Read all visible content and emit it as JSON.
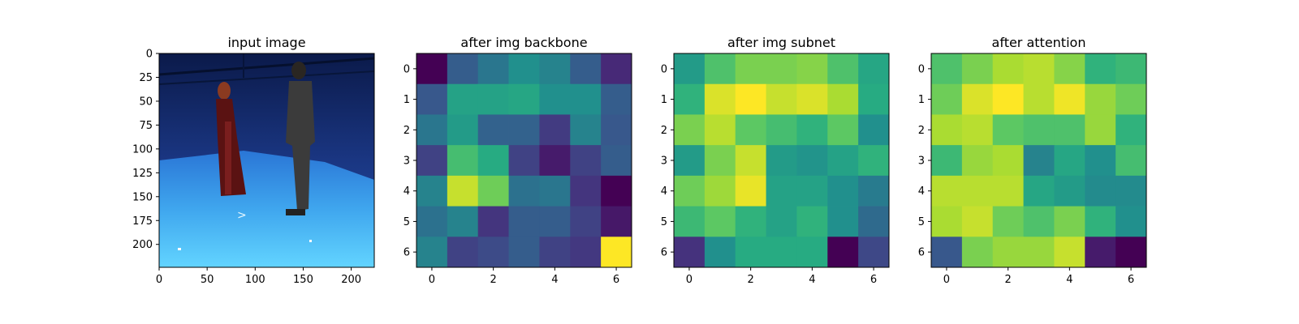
{
  "chart_data": [
    {
      "type": "image",
      "title": "input image",
      "xticks": [
        "0",
        "50",
        "100",
        "150",
        "200"
      ],
      "yticks": [
        "0",
        "25",
        "50",
        "75",
        "100",
        "125",
        "150",
        "175",
        "200"
      ],
      "xlim": [
        0,
        224
      ],
      "ylim": [
        224,
        0
      ],
      "colors": {
        "wall_top": "#0b1a4a",
        "wall_mid": "#1c3a88",
        "floor_far": "#2a77d6",
        "floor_near": "#5fd0ff",
        "person_left_dress": "#6b1515",
        "person_right_clothes": "#3b3b3b"
      }
    },
    {
      "type": "heatmap",
      "title": "after img backbone",
      "xticks": [
        "0",
        "2",
        "4",
        "6"
      ],
      "yticks": [
        "0",
        "1",
        "2",
        "3",
        "4",
        "5",
        "6"
      ],
      "colormap": "viridis",
      "matrix": [
        [
          0.0,
          0.3,
          0.4,
          0.5,
          0.45,
          0.3,
          0.12
        ],
        [
          0.28,
          0.58,
          0.58,
          0.6,
          0.5,
          0.5,
          0.3
        ],
        [
          0.4,
          0.55,
          0.32,
          0.32,
          0.18,
          0.45,
          0.28
        ],
        [
          0.2,
          0.7,
          0.62,
          0.2,
          0.08,
          0.2,
          0.3
        ],
        [
          0.45,
          0.92,
          0.78,
          0.38,
          0.4,
          0.16,
          0.0
        ],
        [
          0.38,
          0.45,
          0.16,
          0.3,
          0.3,
          0.2,
          0.07
        ],
        [
          0.45,
          0.2,
          0.23,
          0.3,
          0.2,
          0.17,
          1.0
        ]
      ]
    },
    {
      "type": "heatmap",
      "title": "after img subnet",
      "xticks": [
        "0",
        "2",
        "4",
        "6"
      ],
      "yticks": [
        "0",
        "1",
        "2",
        "3",
        "4",
        "5",
        "6"
      ],
      "colormap": "viridis",
      "matrix": [
        [
          0.55,
          0.72,
          0.8,
          0.8,
          0.82,
          0.72,
          0.6
        ],
        [
          0.65,
          0.95,
          1.0,
          0.92,
          0.95,
          0.88,
          0.62
        ],
        [
          0.8,
          0.9,
          0.75,
          0.7,
          0.65,
          0.75,
          0.5
        ],
        [
          0.55,
          0.8,
          0.92,
          0.55,
          0.52,
          0.58,
          0.65
        ],
        [
          0.78,
          0.86,
          0.97,
          0.58,
          0.58,
          0.5,
          0.42
        ],
        [
          0.68,
          0.75,
          0.65,
          0.58,
          0.65,
          0.5,
          0.35
        ],
        [
          0.15,
          0.5,
          0.62,
          0.62,
          0.62,
          0.0,
          0.22
        ]
      ]
    },
    {
      "type": "heatmap",
      "title": "after attention",
      "xticks": [
        "0",
        "2",
        "4",
        "6"
      ],
      "yticks": [
        "0",
        "1",
        "2",
        "3",
        "4",
        "5",
        "6"
      ],
      "colormap": "viridis",
      "matrix": [
        [
          0.72,
          0.8,
          0.88,
          0.9,
          0.82,
          0.65,
          0.68
        ],
        [
          0.78,
          0.95,
          1.0,
          0.9,
          0.98,
          0.85,
          0.78
        ],
        [
          0.88,
          0.9,
          0.75,
          0.72,
          0.72,
          0.85,
          0.65
        ],
        [
          0.68,
          0.85,
          0.88,
          0.45,
          0.6,
          0.5,
          0.7
        ],
        [
          0.9,
          0.9,
          0.9,
          0.6,
          0.55,
          0.48,
          0.48
        ],
        [
          0.88,
          0.92,
          0.78,
          0.72,
          0.8,
          0.65,
          0.5
        ],
        [
          0.28,
          0.8,
          0.85,
          0.85,
          0.92,
          0.08,
          0.0
        ]
      ]
    }
  ]
}
